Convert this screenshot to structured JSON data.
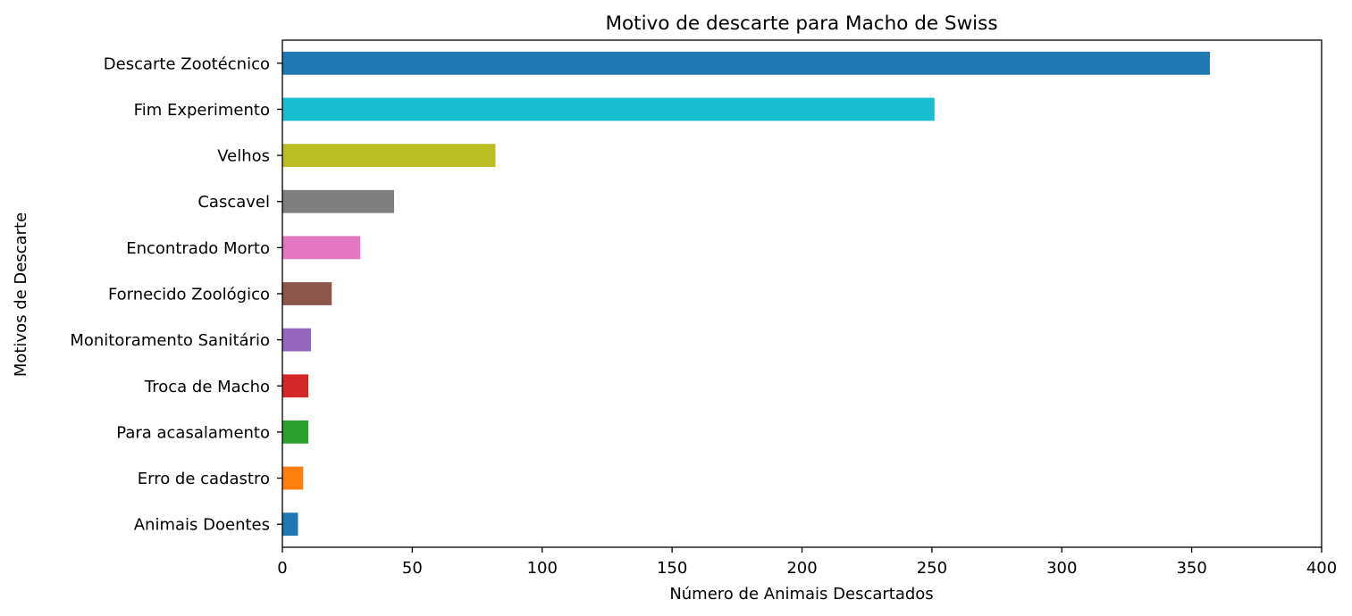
{
  "chart_data": {
    "type": "bar",
    "orientation": "horizontal",
    "title": "Motivo de descarte para Macho de Swiss",
    "xlabel": "Número de Animais Descartados",
    "ylabel": "Motivos de Descarte",
    "xlim": [
      0,
      400
    ],
    "xticks": [
      0,
      50,
      100,
      150,
      200,
      250,
      300,
      350,
      400
    ],
    "grid": false,
    "categories": [
      "Descarte Zootécnico",
      "Fim Experimento",
      "Velhos",
      "Cascavel",
      "Encontrado Morto",
      "Fornecido Zoológico",
      "Monitoramento Sanitário",
      "Troca de Macho",
      "Para acasalamento",
      "Erro de cadastro",
      "Animais Doentes"
    ],
    "values": [
      357,
      251,
      82,
      43,
      30,
      19,
      11,
      10,
      10,
      8,
      6
    ],
    "colors": [
      "#1f77b4",
      "#17becf",
      "#bcbd22",
      "#7f7f7f",
      "#e377c2",
      "#8c564b",
      "#9467bd",
      "#d62728",
      "#2ca02c",
      "#ff7f0e",
      "#1f77b4"
    ]
  }
}
